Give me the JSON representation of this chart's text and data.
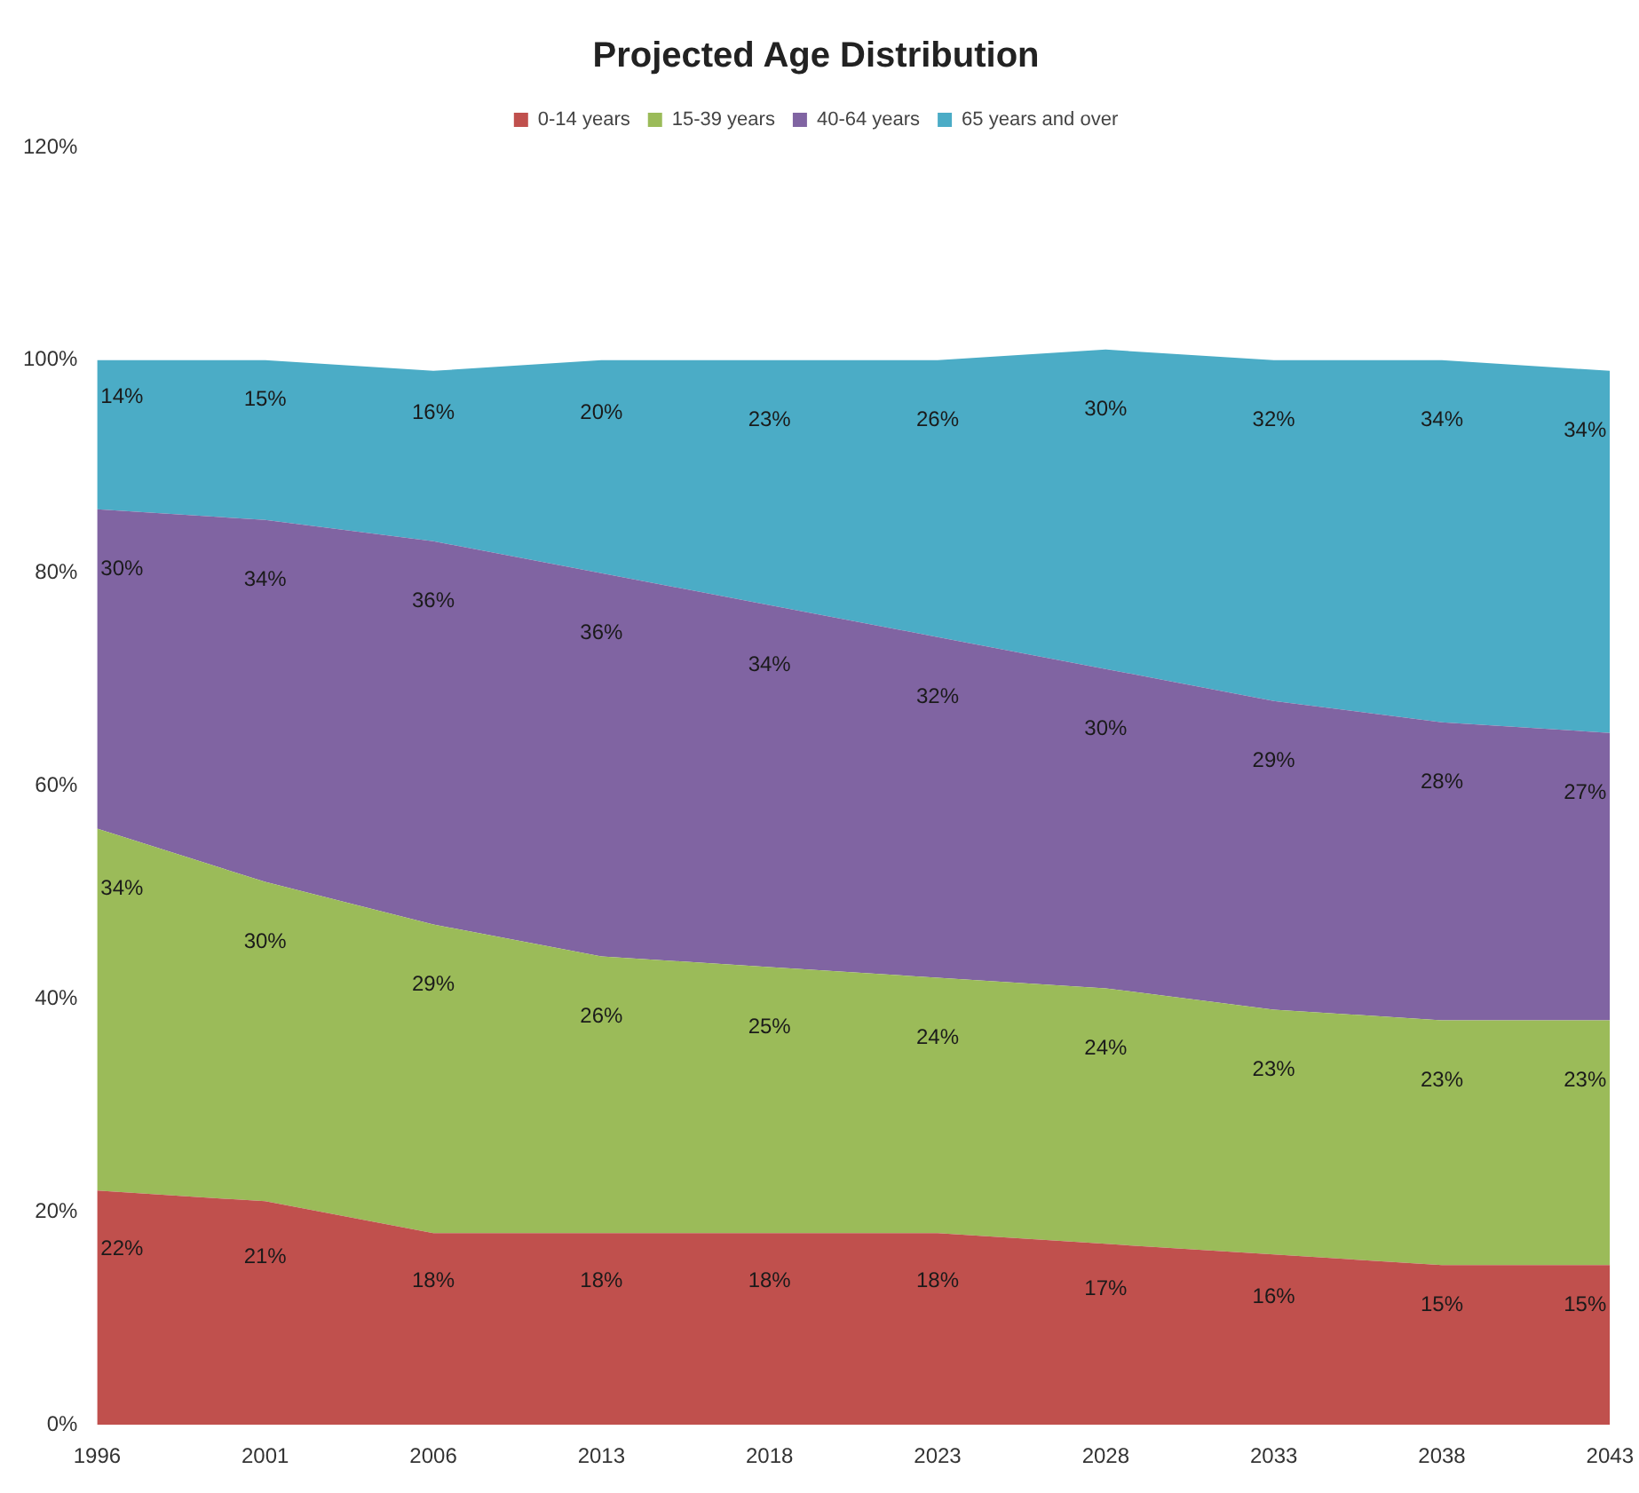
{
  "chart_data": {
    "type": "area",
    "title": "Projected Age Distribution",
    "categories": [
      "1996",
      "2001",
      "2006",
      "2013",
      "2018",
      "2023",
      "2028",
      "2033",
      "2038",
      "2043"
    ],
    "stacked": true,
    "series": [
      {
        "name": "0-14 years",
        "color": "#c0504d",
        "values": [
          22,
          21,
          18,
          18,
          18,
          18,
          17,
          16,
          15,
          15
        ],
        "value_labels": [
          "22%",
          "21%",
          "18%",
          "18%",
          "18%",
          "18%",
          "17%",
          "16%",
          "15%",
          "15%"
        ]
      },
      {
        "name": "15-39 years",
        "color": "#9bbb59",
        "values": [
          34,
          30,
          29,
          26,
          25,
          24,
          24,
          23,
          23,
          23
        ],
        "value_labels": [
          "34%",
          "30%",
          "29%",
          "26%",
          "25%",
          "24%",
          "24%",
          "23%",
          "23%",
          "23%"
        ]
      },
      {
        "name": "40-64 years",
        "color": "#8064a2",
        "values": [
          30,
          34,
          36,
          36,
          34,
          32,
          30,
          29,
          28,
          27
        ],
        "value_labels": [
          "30%",
          "34%",
          "36%",
          "36%",
          "34%",
          "32%",
          "30%",
          "29%",
          "28%",
          "27%"
        ]
      },
      {
        "name": "65 years and over",
        "color": "#4bacc6",
        "values": [
          14,
          15,
          16,
          20,
          23,
          26,
          30,
          32,
          34,
          34
        ],
        "value_labels": [
          "14%",
          "15%",
          "16%",
          "20%",
          "23%",
          "26%",
          "30%",
          "32%",
          "34%",
          "34%"
        ]
      }
    ],
    "ylim": [
      0,
      120
    ],
    "yticks": [
      {
        "value": 0,
        "label": "0%"
      },
      {
        "value": 20,
        "label": "20%"
      },
      {
        "value": 40,
        "label": "40%"
      },
      {
        "value": 60,
        "label": "60%"
      },
      {
        "value": 80,
        "label": "80%"
      },
      {
        "value": 100,
        "label": "100%"
      },
      {
        "value": 120,
        "label": "120%"
      }
    ],
    "grid": false,
    "legend": "top",
    "marker": "none"
  }
}
